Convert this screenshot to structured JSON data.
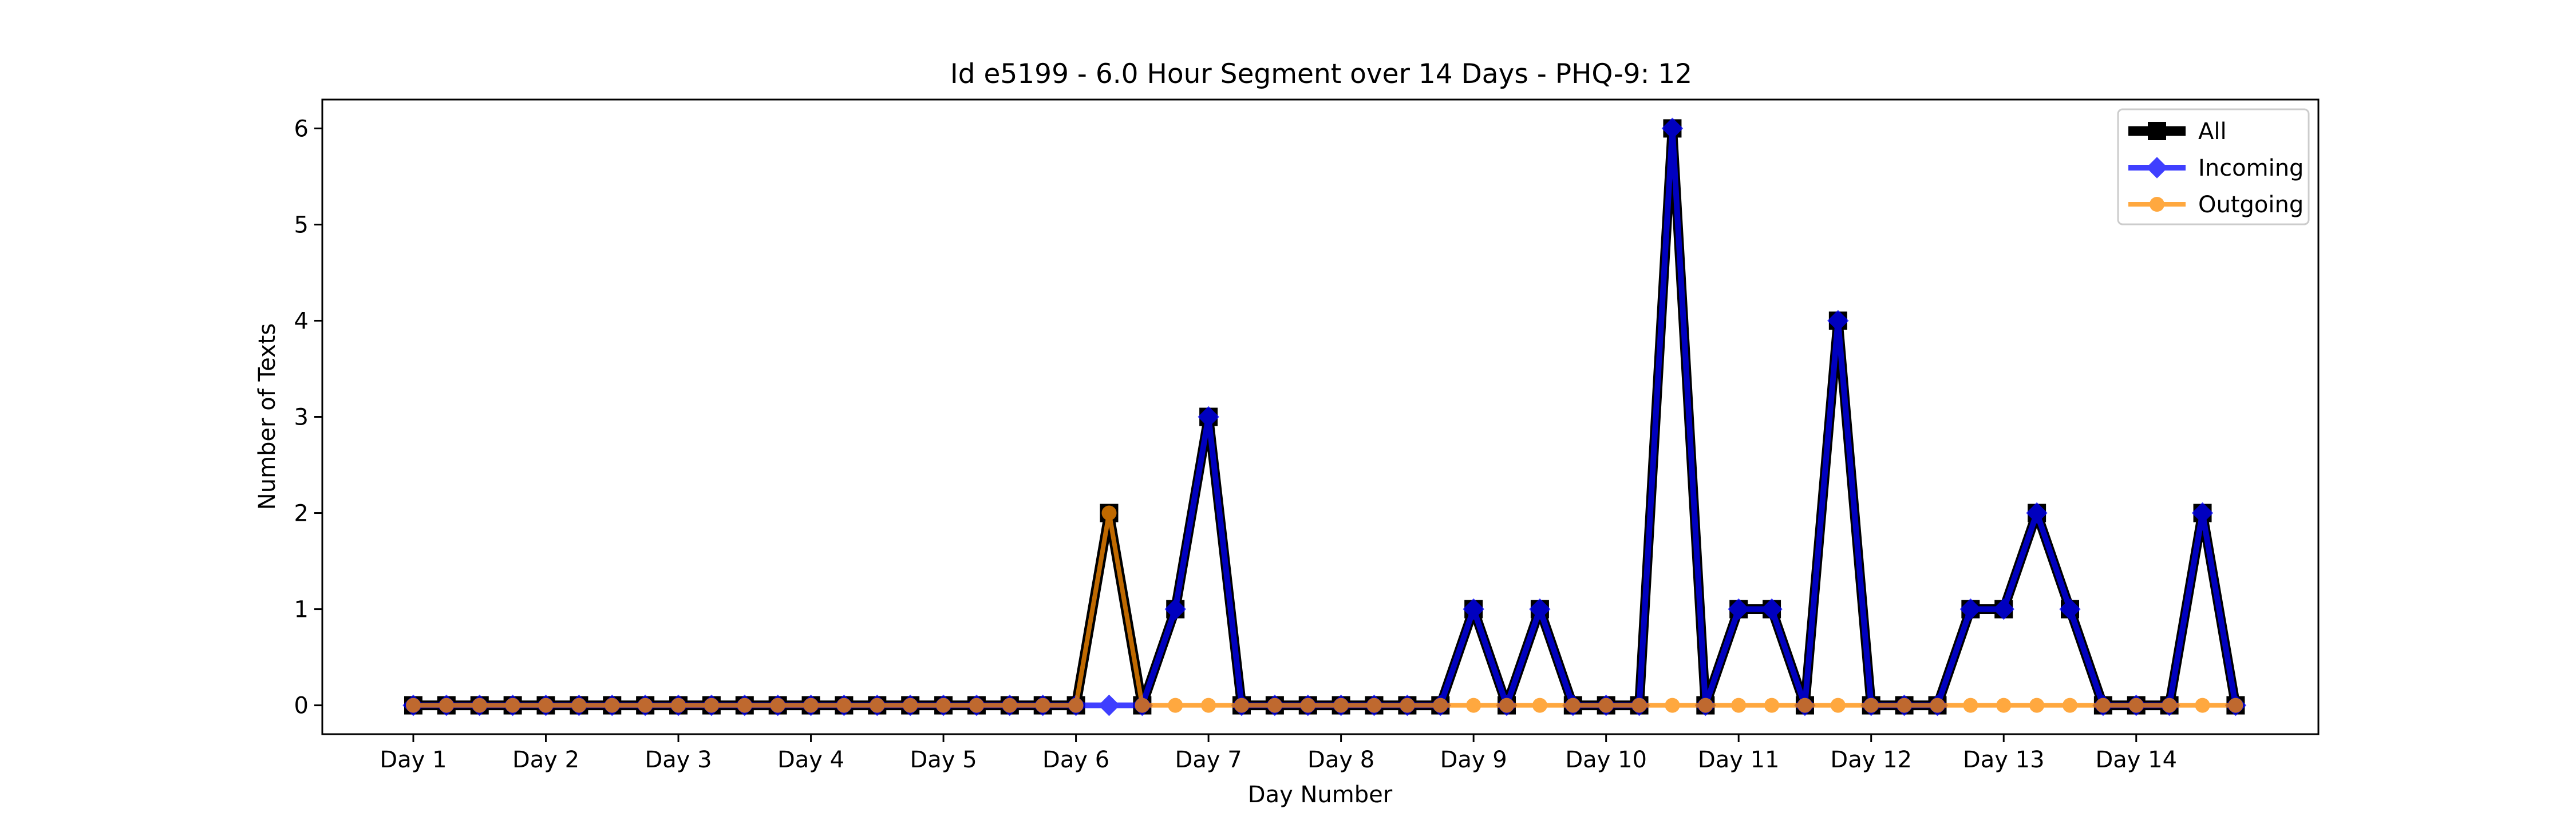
{
  "chart_data": {
    "type": "line",
    "title": "Id e5199 - 6.0 Hour Segment over 14 Days - PHQ-9: 12",
    "xlabel": "Day Number",
    "ylabel": "Number of Texts",
    "ylim": [
      -0.3,
      6.3
    ],
    "yticks": [
      0,
      1,
      2,
      3,
      4,
      5,
      6
    ],
    "xticks": [
      "Day 1",
      "Day 2",
      "Day 3",
      "Day 4",
      "Day 5",
      "Day 6",
      "Day 7",
      "Day 8",
      "Day 9",
      "Day 10",
      "Day 11",
      "Day 12",
      "Day 13",
      "Day 14"
    ],
    "points_per_day": 4,
    "grid": false,
    "legend_position": "top-right",
    "series": [
      {
        "name": "All",
        "color": "#000000",
        "marker": "square",
        "values": [
          0,
          0,
          0,
          0,
          0,
          0,
          0,
          0,
          0,
          0,
          0,
          0,
          0,
          0,
          0,
          0,
          0,
          0,
          0,
          0,
          0,
          2,
          0,
          1,
          3,
          0,
          0,
          0,
          0,
          0,
          0,
          0,
          1,
          0,
          1,
          0,
          0,
          0,
          6,
          0,
          1,
          1,
          0,
          4,
          0,
          0,
          0,
          1,
          1,
          2,
          1,
          0,
          0,
          0,
          2,
          0
        ]
      },
      {
        "name": "Incoming",
        "color": "#0000ff",
        "marker": "diamond",
        "values": [
          0,
          0,
          0,
          0,
          0,
          0,
          0,
          0,
          0,
          0,
          0,
          0,
          0,
          0,
          0,
          0,
          0,
          0,
          0,
          0,
          0,
          0,
          0,
          1,
          3,
          0,
          0,
          0,
          0,
          0,
          0,
          0,
          1,
          0,
          1,
          0,
          0,
          0,
          6,
          0,
          1,
          1,
          0,
          4,
          0,
          0,
          0,
          1,
          1,
          2,
          1,
          0,
          0,
          0,
          2,
          0
        ]
      },
      {
        "name": "Outgoing",
        "color": "#ff8c00",
        "marker": "circle",
        "values": [
          0,
          0,
          0,
          0,
          0,
          0,
          0,
          0,
          0,
          0,
          0,
          0,
          0,
          0,
          0,
          0,
          0,
          0,
          0,
          0,
          0,
          2,
          0,
          0,
          0,
          0,
          0,
          0,
          0,
          0,
          0,
          0,
          0,
          0,
          0,
          0,
          0,
          0,
          0,
          0,
          0,
          0,
          0,
          0,
          0,
          0,
          0,
          0,
          0,
          0,
          0,
          0,
          0,
          0,
          0,
          0
        ]
      }
    ]
  }
}
